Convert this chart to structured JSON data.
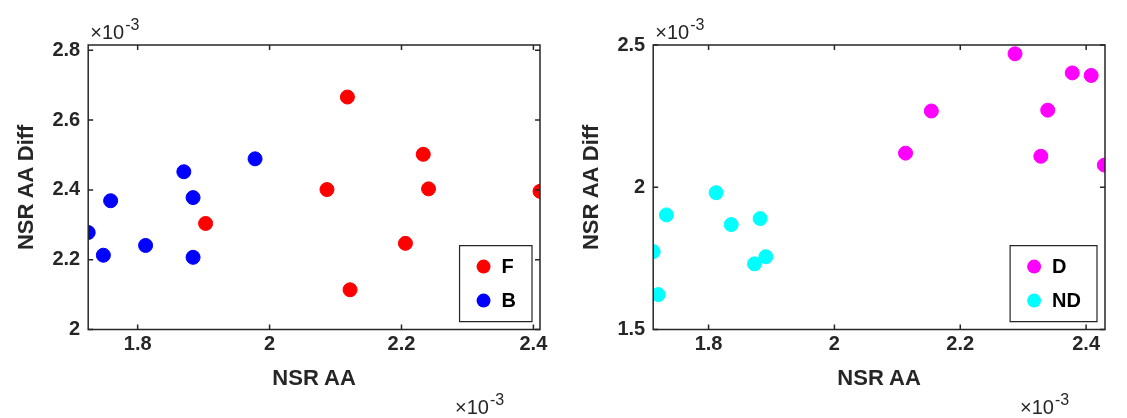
{
  "chart_data": [
    {
      "type": "scatter",
      "xlabel": "NSR AA",
      "ylabel": "NSR AA Diff",
      "xlim": [
        1.725,
        2.41
      ],
      "ylim": [
        2,
        2.815
      ],
      "xticks": [
        1.8,
        2,
        2.2,
        2.4
      ],
      "yticks": [
        2,
        2.2,
        2.4,
        2.6,
        2.8
      ],
      "grid": false,
      "legend": "bottom right",
      "marker": "circle",
      "annotations": [
        "×10$^{-3}$",
        "×10$^{-3}$"
      ],
      "series": [
        {
          "name": "F",
          "color": "#ff0000",
          "x": [
            2.118,
            2.233,
            2.087,
            2.241,
            2.41,
            1.903,
            2.206,
            2.122
          ],
          "values": [
            2.666,
            2.502,
            2.401,
            2.403,
            2.396,
            2.304,
            2.247,
            2.114
          ]
        },
        {
          "name": "B",
          "color": "#0000ff",
          "x": [
            1.978,
            1.87,
            1.759,
            1.884,
            1.725,
            1.748,
            1.812,
            1.884
          ],
          "values": [
            2.489,
            2.452,
            2.369,
            2.378,
            2.278,
            2.213,
            2.241,
            2.207
          ]
        }
      ]
    },
    {
      "type": "scatter",
      "xlabel": "NSR AA",
      "ylabel": "NSR AA Diff",
      "xlim": [
        1.712,
        2.43
      ],
      "ylim": [
        1.5,
        2.5
      ],
      "xticks": [
        1.8,
        2,
        2.2,
        2.4
      ],
      "yticks": [
        1.5,
        2,
        2.5
      ],
      "grid": false,
      "legend": "bottom right",
      "marker": "circle",
      "annotations": [
        "×10$^{-3}$",
        "×10$^{-3}$"
      ],
      "series": [
        {
          "name": "D",
          "color": "#ff00ff",
          "x": [
            2.287,
            2.378,
            2.408,
            2.154,
            2.339,
            2.113,
            2.328,
            2.429
          ],
          "values": [
            2.469,
            2.402,
            2.393,
            2.268,
            2.271,
            2.12,
            2.109,
            2.078
          ]
        },
        {
          "name": "ND",
          "color": "#00ffff",
          "x": [
            1.812,
            1.733,
            1.836,
            1.882,
            1.712,
            1.891,
            1.873,
            1.72
          ],
          "values": [
            1.981,
            1.903,
            1.869,
            1.89,
            1.774,
            1.756,
            1.731,
            1.623
          ]
        }
      ]
    }
  ]
}
